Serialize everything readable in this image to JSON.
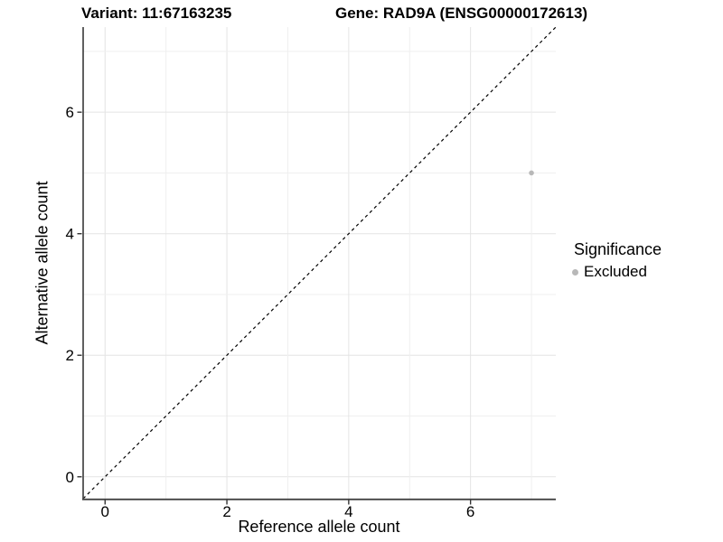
{
  "chart_data": {
    "type": "scatter",
    "title_left": "Variant: 11:67163235",
    "title_right": "Gene: RAD9A (ENSG00000172613)",
    "xlabel": "Reference allele count",
    "ylabel": "Alternative allele count",
    "xlim": [
      -0.36,
      7.4
    ],
    "ylim": [
      -0.36,
      7.4
    ],
    "xticks": [
      0,
      2,
      4,
      6
    ],
    "yticks": [
      0,
      2,
      4,
      6
    ],
    "gridlines": [
      0,
      1,
      2,
      3,
      4,
      5,
      6,
      7
    ],
    "grid_on": true,
    "points": [
      {
        "x": 7,
        "y": 5,
        "series": "Excluded"
      }
    ],
    "reference_line": {
      "type": "identity",
      "slope": 1,
      "intercept": 0,
      "style": "dashed",
      "color": "#000000"
    },
    "legend": {
      "title": "Significance",
      "position": "right",
      "entries": [
        {
          "label": "Excluded",
          "color": "#b8b8b8"
        }
      ]
    },
    "colors": {
      "point": "#b8b8b8",
      "grid_major": "#e4e4e4",
      "grid_minor": "#efefef",
      "axis_line": "#444444",
      "tick_mark": "#333333"
    }
  }
}
